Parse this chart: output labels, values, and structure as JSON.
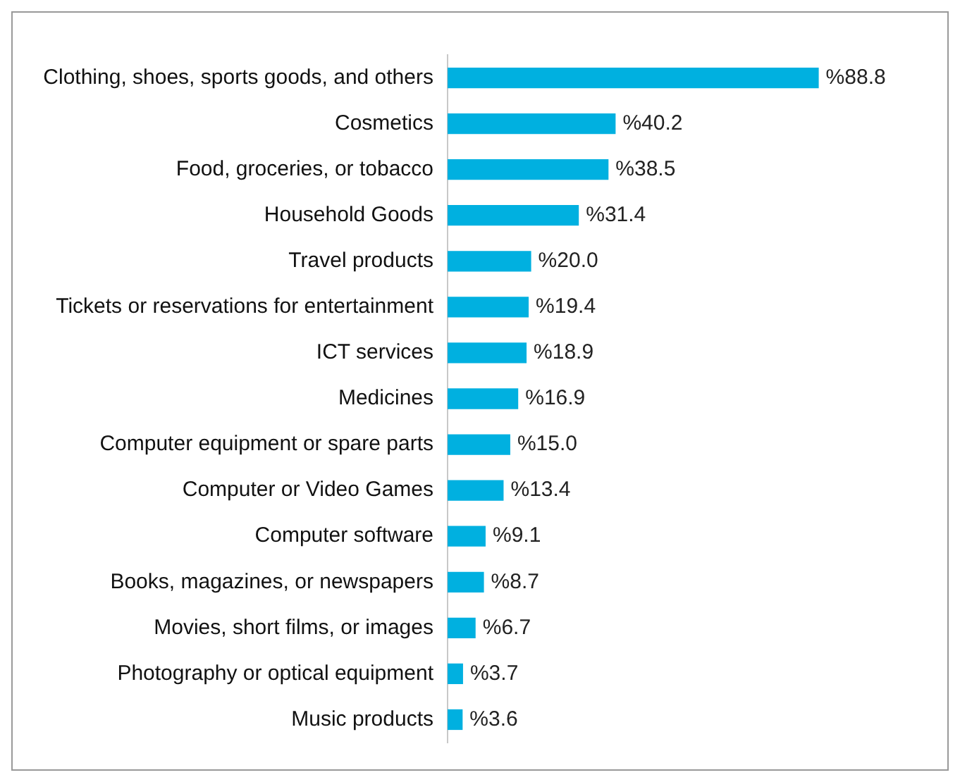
{
  "chart_data": {
    "type": "bar",
    "orientation": "horizontal",
    "categories": [
      "Clothing, shoes, sports goods, and others",
      "Cosmetics",
      "Food, groceries, or tobacco",
      "Household Goods",
      "Travel products",
      "Tickets or reservations for entertainment",
      "ICT services",
      "Medicines",
      "Computer equipment or spare parts",
      "Computer or Video Games",
      "Computer software",
      "Books, magazines, or newspapers",
      "Movies, short films, or images",
      "Photography or optical equipment",
      "Music products"
    ],
    "values": [
      88.8,
      40.2,
      38.5,
      31.4,
      20.0,
      19.4,
      18.9,
      16.9,
      15.0,
      13.4,
      9.1,
      8.7,
      6.7,
      3.7,
      3.6
    ],
    "value_labels": [
      "%88.8",
      "%40.2",
      "%38.5",
      "%31.4",
      "%20.0",
      "%19.4",
      "%18.9",
      "%16.9",
      "%15.0",
      "%13.4",
      "%9.1",
      "%8.7",
      "%6.7",
      "%3.7",
      "%3.6"
    ],
    "color": "#00b0e0",
    "grid": false,
    "legend": false,
    "tick_labels": "y"
  }
}
